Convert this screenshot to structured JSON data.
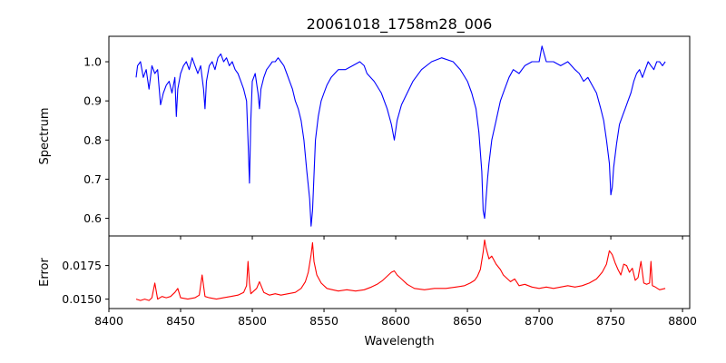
{
  "chart_data": [
    {
      "type": "line",
      "panel": "spectrum",
      "title": "20061018_1758m28_006",
      "xlabel": "",
      "ylabel": "Spectrum",
      "xlim": [
        8400,
        8805
      ],
      "ylim": [
        0.555,
        1.065
      ],
      "xticks": [
        8400,
        8450,
        8500,
        8550,
        8600,
        8650,
        8700,
        8750,
        8800
      ],
      "xtick_labels_visible": false,
      "yticks": [
        0.6,
        0.7,
        0.8,
        0.9,
        1.0
      ],
      "ytick_labels": [
        "0.6",
        "0.7",
        "0.8",
        "0.9",
        "1.0"
      ],
      "grid": false,
      "series": [
        {
          "color": "#0000ff",
          "x": [
            8419,
            8420,
            8422,
            8424,
            8426,
            8428,
            8430,
            8432,
            8434,
            8436,
            8438,
            8440,
            8442,
            8444,
            8446,
            8447,
            8448,
            8450,
            8452,
            8454,
            8456,
            8458,
            8460,
            8462,
            8464,
            8466,
            8467,
            8468,
            8470,
            8472,
            8474,
            8476,
            8478,
            8480,
            8482,
            8484,
            8486,
            8488,
            8490,
            8492,
            8494,
            8496,
            8497,
            8498,
            8499,
            8500,
            8502,
            8504,
            8505,
            8506,
            8508,
            8510,
            8512,
            8514,
            8516,
            8518,
            8520,
            8522,
            8524,
            8526,
            8528,
            8530,
            8532,
            8534,
            8536,
            8538,
            8540,
            8541,
            8542,
            8543,
            8544,
            8546,
            8548,
            8550,
            8552,
            8555,
            8560,
            8565,
            8570,
            8575,
            8578,
            8580,
            8585,
            8590,
            8594,
            8597,
            8599,
            8601,
            8604,
            8608,
            8612,
            8618,
            8625,
            8632,
            8640,
            8645,
            8650,
            8653,
            8656,
            8658,
            8660,
            8661,
            8662,
            8663,
            8664,
            8665,
            8667,
            8670,
            8673,
            8676,
            8679,
            8682,
            8686,
            8690,
            8695,
            8700,
            8702,
            8705,
            8710,
            8715,
            8720,
            8725,
            8728,
            8731,
            8734,
            8737,
            8740,
            8743,
            8745,
            8747,
            8749,
            8750,
            8751,
            8752,
            8754,
            8756,
            8758,
            8760,
            8762,
            8764,
            8766,
            8768,
            8770,
            8772,
            8774,
            8776,
            8778,
            8780,
            8782,
            8784,
            8786,
            8788
          ],
          "y": [
            0.96,
            0.99,
            1.0,
            0.96,
            0.98,
            0.93,
            0.99,
            0.97,
            0.98,
            0.89,
            0.92,
            0.94,
            0.95,
            0.92,
            0.96,
            0.86,
            0.93,
            0.97,
            0.99,
            1.0,
            0.98,
            1.01,
            0.99,
            0.97,
            0.99,
            0.93,
            0.88,
            0.95,
            0.99,
            1.0,
            0.98,
            1.01,
            1.02,
            1.0,
            1.01,
            0.99,
            1.0,
            0.98,
            0.97,
            0.95,
            0.93,
            0.9,
            0.8,
            0.69,
            0.85,
            0.95,
            0.97,
            0.92,
            0.88,
            0.93,
            0.96,
            0.98,
            0.99,
            1.0,
            1.0,
            1.01,
            1.0,
            0.99,
            0.97,
            0.95,
            0.93,
            0.9,
            0.88,
            0.85,
            0.8,
            0.72,
            0.65,
            0.58,
            0.62,
            0.71,
            0.8,
            0.86,
            0.9,
            0.92,
            0.94,
            0.96,
            0.98,
            0.98,
            0.99,
            1.0,
            0.99,
            0.97,
            0.95,
            0.92,
            0.88,
            0.84,
            0.8,
            0.85,
            0.89,
            0.92,
            0.95,
            0.98,
            1.0,
            1.01,
            1.0,
            0.98,
            0.95,
            0.92,
            0.88,
            0.82,
            0.72,
            0.62,
            0.6,
            0.65,
            0.7,
            0.74,
            0.8,
            0.85,
            0.9,
            0.93,
            0.96,
            0.98,
            0.97,
            0.99,
            1.0,
            1.0,
            1.04,
            1.0,
            1.0,
            0.99,
            1.0,
            0.98,
            0.97,
            0.95,
            0.96,
            0.94,
            0.92,
            0.88,
            0.85,
            0.8,
            0.74,
            0.66,
            0.68,
            0.73,
            0.79,
            0.84,
            0.86,
            0.88,
            0.9,
            0.92,
            0.95,
            0.97,
            0.98,
            0.96,
            0.98,
            1.0,
            0.99,
            0.98,
            1.0,
            1.0,
            0.99,
            1.0
          ]
        }
      ]
    },
    {
      "type": "line",
      "panel": "error",
      "title": "",
      "xlabel": "Wavelength",
      "ylabel": "Error",
      "xlim": [
        8400,
        8805
      ],
      "ylim": [
        0.0143,
        0.0197
      ],
      "xticks": [
        8400,
        8450,
        8500,
        8550,
        8600,
        8650,
        8700,
        8750,
        8800
      ],
      "xtick_labels": [
        "8400",
        "8450",
        "8500",
        "8550",
        "8600",
        "8650",
        "8700",
        "8750",
        "8800"
      ],
      "yticks": [
        0.015,
        0.0175
      ],
      "ytick_labels": [
        "0.0150",
        "0.0175"
      ],
      "grid": false,
      "series": [
        {
          "color": "#ff0000",
          "x": [
            8419,
            8422,
            8425,
            8428,
            8430,
            8432,
            8434,
            8437,
            8440,
            8443,
            8446,
            8448,
            8450,
            8455,
            8460,
            8463,
            8465,
            8467,
            8470,
            8475,
            8480,
            8485,
            8490,
            8494,
            8496,
            8497,
            8498,
            8499,
            8501,
            8503,
            8505,
            8508,
            8512,
            8516,
            8520,
            8525,
            8530,
            8534,
            8537,
            8539,
            8541,
            8542,
            8543,
            8545,
            8548,
            8552,
            8556,
            8560,
            8566,
            8572,
            8578,
            8583,
            8587,
            8591,
            8594,
            8597,
            8599,
            8601,
            8604,
            8608,
            8613,
            8620,
            8627,
            8635,
            8642,
            8648,
            8652,
            8655,
            8657,
            8659,
            8661,
            8662,
            8663,
            8665,
            8667,
            8670,
            8673,
            8675,
            8677,
            8680,
            8683,
            8686,
            8690,
            8695,
            8700,
            8705,
            8710,
            8715,
            8720,
            8725,
            8730,
            8735,
            8740,
            8744,
            8747,
            8749,
            8751,
            8753,
            8755,
            8757,
            8759,
            8761,
            8763,
            8765,
            8767,
            8769,
            8771,
            8773,
            8775,
            8777,
            8778,
            8779,
            8781,
            8784,
            8788
          ],
          "y": [
            0.015,
            0.0149,
            0.015,
            0.0149,
            0.0151,
            0.0162,
            0.015,
            0.0152,
            0.0151,
            0.0152,
            0.0155,
            0.0158,
            0.0151,
            0.015,
            0.0151,
            0.0153,
            0.0168,
            0.0152,
            0.0151,
            0.015,
            0.0151,
            0.0152,
            0.0153,
            0.0155,
            0.016,
            0.0178,
            0.0162,
            0.0154,
            0.0156,
            0.0158,
            0.0163,
            0.0155,
            0.0153,
            0.0154,
            0.0153,
            0.0154,
            0.0155,
            0.0158,
            0.0163,
            0.017,
            0.0183,
            0.0192,
            0.0178,
            0.0168,
            0.0162,
            0.0158,
            0.0157,
            0.0156,
            0.0157,
            0.0156,
            0.0157,
            0.0159,
            0.0161,
            0.0164,
            0.0167,
            0.017,
            0.0171,
            0.0168,
            0.0165,
            0.0161,
            0.0158,
            0.0157,
            0.0158,
            0.0158,
            0.0159,
            0.016,
            0.0162,
            0.0164,
            0.0167,
            0.0172,
            0.0185,
            0.0194,
            0.0188,
            0.018,
            0.0182,
            0.0176,
            0.0172,
            0.0168,
            0.0166,
            0.0163,
            0.0165,
            0.016,
            0.0161,
            0.0159,
            0.0158,
            0.0159,
            0.0158,
            0.0159,
            0.016,
            0.0159,
            0.016,
            0.0162,
            0.0165,
            0.017,
            0.0176,
            0.0186,
            0.0183,
            0.0177,
            0.0172,
            0.0168,
            0.0176,
            0.0175,
            0.017,
            0.0173,
            0.0164,
            0.0166,
            0.0178,
            0.0162,
            0.0161,
            0.0162,
            0.0178,
            0.016,
            0.0159,
            0.0157,
            0.0158
          ]
        }
      ]
    }
  ]
}
